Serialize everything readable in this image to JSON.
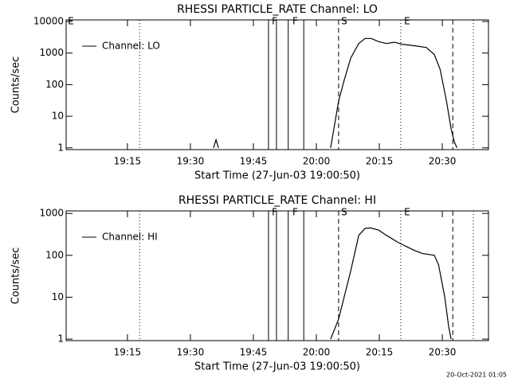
{
  "chart_data": [
    {
      "type": "line",
      "title": "RHESSI PARTICLE_RATE Channel: LO",
      "x_label": "Start Time (27-Jun-03 19:00:50)",
      "y_label": "Counts/sec",
      "x": [
        35.5,
        36.1,
        36.7,
        50,
        63.4,
        65.3,
        66.7,
        68.2,
        70.1,
        71.6,
        73.1,
        74.8,
        76.7,
        78.6,
        80.5,
        83.4,
        86.2,
        88.1,
        89.5,
        91.0,
        92.1,
        92.9,
        93.5
      ],
      "series": [
        {
          "name": "Channel: LO",
          "color": "#000000",
          "values": [
            1,
            1.8,
            1,
            null,
            1,
            30,
            150,
            700,
            2000,
            2900,
            2900,
            2300,
            2000,
            2200,
            1900,
            1700,
            1500,
            900,
            300,
            30,
            4,
            1.5,
            1
          ]
        }
      ],
      "xlim": [
        0.4,
        101
      ],
      "xticks": [
        {
          "value": 15,
          "label": "19:15"
        },
        {
          "value": 30,
          "label": "19:30"
        },
        {
          "value": 45,
          "label": "19:45"
        },
        {
          "value": 60,
          "label": "20:00"
        },
        {
          "value": 75,
          "label": "20:15"
        },
        {
          "value": 90,
          "label": "20:30"
        }
      ],
      "ylim": [
        0.88,
        11200
      ],
      "yticks": [
        1,
        10,
        100,
        1000,
        10000
      ],
      "y_scale": "log",
      "legend": "upper left",
      "vlines": [
        {
          "x": 17.9,
          "style": "dotted"
        },
        {
          "x": 80.1,
          "style": "dotted"
        },
        {
          "x": 97.4,
          "style": "dotted"
        },
        {
          "x": 48.6,
          "style": "solid"
        },
        {
          "x": 50.5,
          "style": "solid"
        },
        {
          "x": 53.3,
          "style": "solid"
        },
        {
          "x": 57.0,
          "style": "solid"
        },
        {
          "x": 65.3,
          "style": "dashed"
        },
        {
          "x": 92.5,
          "style": "dashed"
        }
      ],
      "annotations": [
        {
          "text": "E",
          "x": 0.8
        },
        {
          "text": "F",
          "x": 49.4
        },
        {
          "text": "F",
          "x": 54.3
        },
        {
          "text": "S",
          "x": 65.9
        },
        {
          "text": "E",
          "x": 80.9
        }
      ]
    },
    {
      "type": "line",
      "title": "RHESSI PARTICLE_RATE Channel: HI",
      "x_label": "Start Time (27-Jun-03 19:00:50)",
      "y_label": "Counts/sec",
      "x": [
        63.4,
        65.3,
        68.2,
        70.1,
        71.6,
        72.9,
        74.8,
        76.7,
        79.6,
        83.4,
        85.3,
        88.1,
        89.1,
        90.6,
        91.5,
        92.1
      ],
      "series": [
        {
          "name": "Channel: HI",
          "color": "#000000",
          "values": [
            1,
            3,
            43,
            300,
            440,
            450,
            400,
            300,
            200,
            130,
            110,
            100,
            60,
            10,
            2,
            1
          ]
        }
      ],
      "xlim": [
        0.4,
        101
      ],
      "xticks": [
        {
          "value": 15,
          "label": "19:15"
        },
        {
          "value": 30,
          "label": "19:30"
        },
        {
          "value": 45,
          "label": "19:45"
        },
        {
          "value": 60,
          "label": "20:00"
        },
        {
          "value": 75,
          "label": "20:15"
        },
        {
          "value": 90,
          "label": "20:30"
        }
      ],
      "ylim": [
        0.92,
        1150
      ],
      "yticks": [
        1,
        10,
        100,
        1000
      ],
      "y_scale": "log",
      "legend": "upper left",
      "vlines": [
        {
          "x": 17.9,
          "style": "dotted"
        },
        {
          "x": 80.1,
          "style": "dotted"
        },
        {
          "x": 97.4,
          "style": "dotted"
        },
        {
          "x": 48.6,
          "style": "solid"
        },
        {
          "x": 50.5,
          "style": "solid"
        },
        {
          "x": 53.3,
          "style": "solid"
        },
        {
          "x": 57.0,
          "style": "solid"
        },
        {
          "x": 65.3,
          "style": "dashed"
        },
        {
          "x": 92.5,
          "style": "dashed"
        }
      ],
      "annotations": [
        {
          "text": "F",
          "x": 49.4
        },
        {
          "text": "F",
          "x": 54.3
        },
        {
          "text": "S",
          "x": 65.9
        },
        {
          "text": "E",
          "x": 80.9
        }
      ]
    }
  ],
  "footer": "20-Oct-2021 01:05"
}
